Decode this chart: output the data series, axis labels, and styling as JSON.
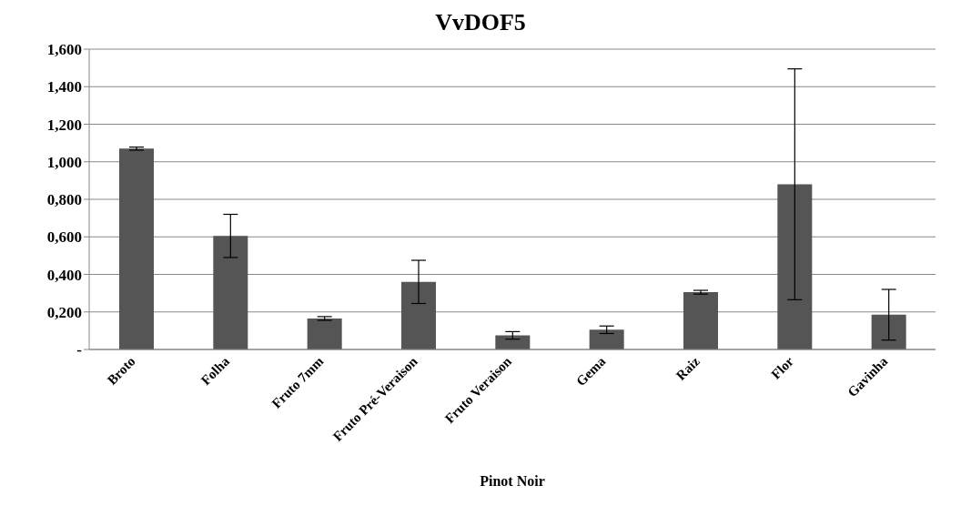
{
  "chart_data": {
    "type": "bar",
    "title": "VvDOF5",
    "xlabel": "Pinot Noir",
    "categories": [
      "Broto",
      "Folha",
      "Fruto 7mm",
      "Fruto Pré-Veraison",
      "Fruto Veraison",
      "Gema",
      "Raiz",
      "Flor",
      "Gavinha"
    ],
    "values": [
      1.07,
      0.605,
      0.165,
      0.36,
      0.075,
      0.105,
      0.305,
      0.88,
      0.185
    ],
    "errors": [
      0.008,
      0.115,
      0.01,
      0.115,
      0.02,
      0.02,
      0.01,
      0.615,
      0.135
    ],
    "color": "#555555",
    "ylim": [
      0,
      1.6
    ],
    "yticks": [
      {
        "value": 0,
        "label": "-"
      },
      {
        "value": 0.2,
        "label": "0,200"
      },
      {
        "value": 0.4,
        "label": "0,400"
      },
      {
        "value": 0.6,
        "label": "0,600"
      },
      {
        "value": 0.8,
        "label": "0,800"
      },
      {
        "value": 1.0,
        "label": "1,000"
      },
      {
        "value": 1.2,
        "label": "1,200"
      },
      {
        "value": 1.4,
        "label": "1,400"
      },
      {
        "value": 1.6,
        "label": "1,600"
      }
    ],
    "grid": "y"
  }
}
